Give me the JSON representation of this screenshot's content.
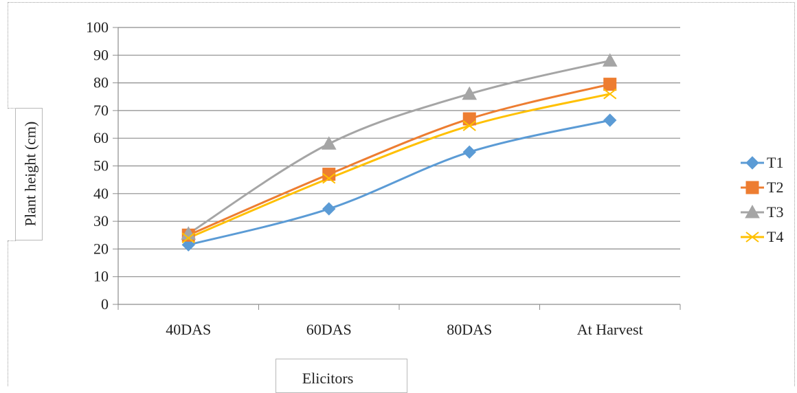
{
  "chart_data": {
    "type": "line",
    "title": "",
    "xlabel": "Elicitors",
    "ylabel": "Plant height (cm)",
    "categories": [
      "40DAS",
      "60DAS",
      "80DAS",
      "At Harvest"
    ],
    "ylim": [
      0,
      100
    ],
    "yticks": [
      0,
      10,
      20,
      30,
      40,
      50,
      60,
      70,
      80,
      90,
      100
    ],
    "grid": true,
    "legend_position": "right",
    "series": [
      {
        "name": "T1",
        "values": [
          21.5,
          34.5,
          55,
          66.5
        ],
        "color": "#5b9bd5",
        "marker": "diamond"
      },
      {
        "name": "T2",
        "values": [
          25,
          47,
          67,
          79.5
        ],
        "color": "#ed7d31",
        "marker": "square"
      },
      {
        "name": "T3",
        "values": [
          25.5,
          58,
          76,
          88
        ],
        "color": "#a5a5a5",
        "marker": "triangle"
      },
      {
        "name": "T4",
        "values": [
          24,
          45.5,
          64.5,
          76
        ],
        "color": "#ffc000",
        "marker": "x"
      }
    ]
  }
}
